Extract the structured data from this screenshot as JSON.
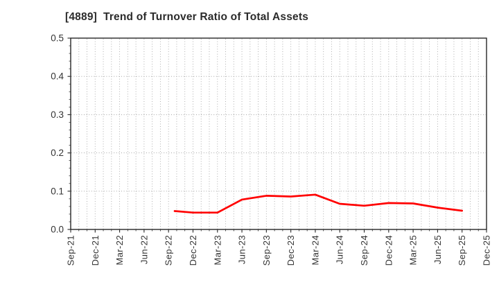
{
  "chart_data": {
    "type": "line",
    "title": "[4889]  Trend of Turnover Ratio of Total Assets",
    "xlabel": "",
    "ylabel": "",
    "ylim": [
      0.0,
      0.5
    ],
    "y_tick_labels": [
      "0.0",
      "0.1",
      "0.2",
      "0.3",
      "0.4",
      "0.5"
    ],
    "x_tick_labels": [
      "Sep-21",
      "Dec-21",
      "Mar-22",
      "Jun-22",
      "Sep-22",
      "Dec-22",
      "Mar-23",
      "Jun-23",
      "Sep-23",
      "Dec-23",
      "Mar-24",
      "Jun-24",
      "Sep-24",
      "Dec-24",
      "Mar-25",
      "Jun-25",
      "Sep-25",
      "Dec-25"
    ],
    "grid": {
      "horizontal": "dotted lines at 0.1 intervals",
      "vertical": "dotted lines at monthly intervals",
      "visible": true
    },
    "legend": "none",
    "series": [
      {
        "name": "Turnover Ratio of Total Assets",
        "color": "#ff0000",
        "points": [
          {
            "x": "Sep-22",
            "xi": 4.25,
            "y": 0.048
          },
          {
            "x": "Dec-22",
            "xi": 5,
            "y": 0.044
          },
          {
            "x": "Mar-23",
            "xi": 6,
            "y": 0.044
          },
          {
            "x": "Jun-23",
            "xi": 7,
            "y": 0.078
          },
          {
            "x": "Sep-23",
            "xi": 8,
            "y": 0.088
          },
          {
            "x": "Dec-23",
            "xi": 9,
            "y": 0.086
          },
          {
            "x": "Mar-24",
            "xi": 10,
            "y": 0.091
          },
          {
            "x": "Jun-24",
            "xi": 11,
            "y": 0.067
          },
          {
            "x": "Sep-24",
            "xi": 12,
            "y": 0.062
          },
          {
            "x": "Dec-24",
            "xi": 13,
            "y": 0.069
          },
          {
            "x": "Mar-25",
            "xi": 14,
            "y": 0.068
          },
          {
            "x": "Jun-25",
            "xi": 15,
            "y": 0.057
          },
          {
            "x": "Sep-25",
            "xi": 16,
            "y": 0.049
          }
        ]
      }
    ]
  },
  "style": {
    "line_color": "#ff0000",
    "axis_color": "#262626",
    "grid_color_h": "#9a9a9a",
    "grid_color_v": "#a6a6a6",
    "text_color": "#333333",
    "background": "#ffffff"
  }
}
